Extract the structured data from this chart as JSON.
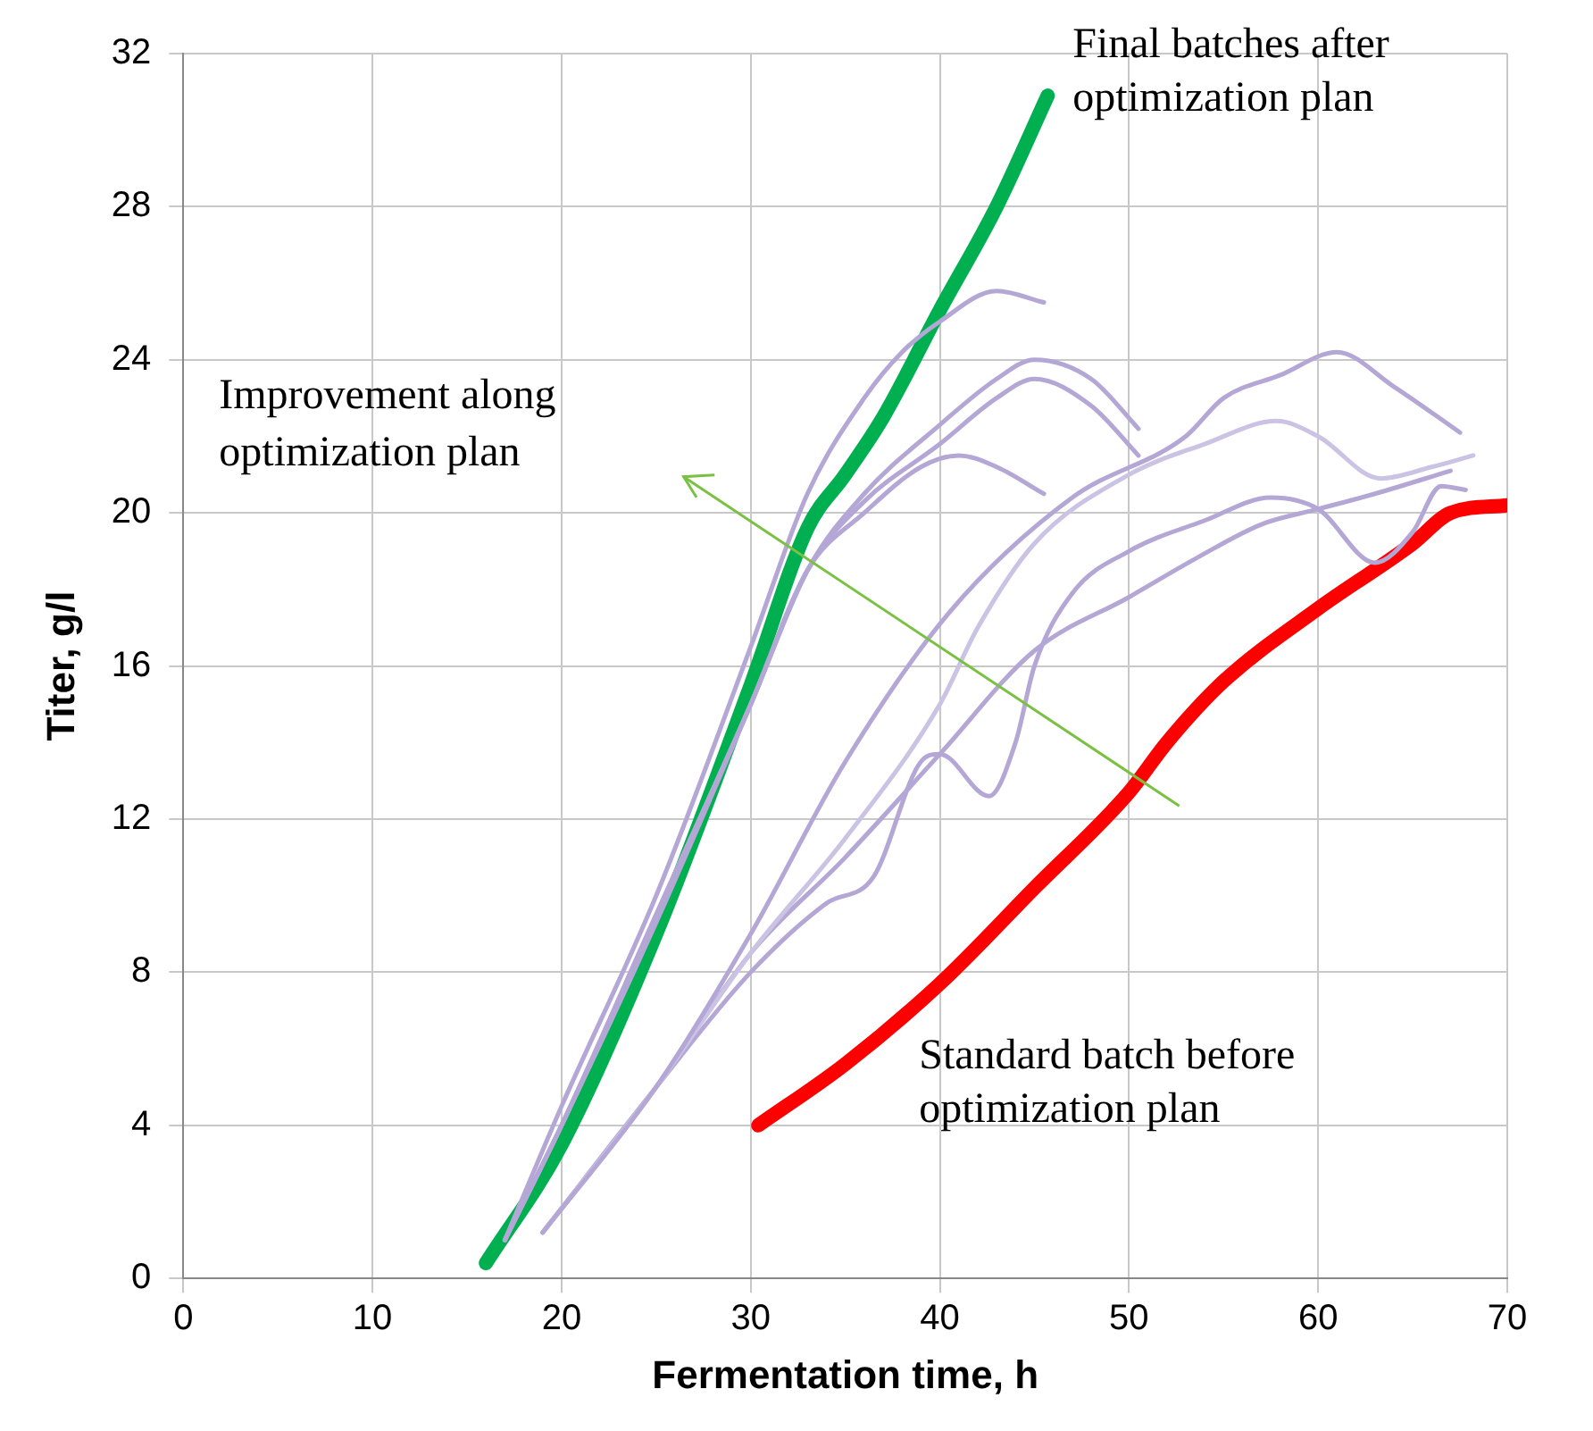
{
  "chart_data": {
    "type": "line",
    "xlabel": "Fermentation time, h",
    "ylabel": "Titer, g/l",
    "xlim": [
      0,
      70
    ],
    "xticks": [
      0,
      10,
      20,
      30,
      40,
      50,
      60,
      70
    ],
    "ylim": [
      0,
      32
    ],
    "yticks": [
      0,
      4,
      8,
      12,
      16,
      20,
      24,
      28,
      32
    ],
    "grid": true,
    "legend": false,
    "marker": "none",
    "line_style": "solid",
    "annotations": [
      "Improvement along optimization plan"
    ],
    "series": [
      {
        "color": "#b4a7d6",
        "x": [
          17,
          20,
          25,
          30,
          33,
          36,
          38,
          40,
          43,
          45.5
        ],
        "values": [
          1,
          4.5,
          10,
          16.5,
          20.5,
          23,
          24.2,
          25,
          25.8,
          25.5
        ]
      },
      {
        "color": "#b4a7d6",
        "x": [
          17,
          20,
          25,
          30,
          33,
          36,
          40,
          43,
          45,
          48,
          50.5
        ],
        "values": [
          1,
          4,
          9.5,
          15,
          18.5,
          20.5,
          22.3,
          23.5,
          24,
          23.5,
          22.2
        ]
      },
      {
        "color": "#b4a7d6",
        "x": [
          17,
          20,
          25,
          30,
          33,
          36,
          40,
          43,
          45,
          48,
          50.5
        ],
        "values": [
          1,
          4,
          9.5,
          15,
          18.5,
          20.3,
          21.8,
          23,
          23.5,
          22.8,
          21.5
        ]
      },
      {
        "color": "#b4a7d6",
        "x": [
          17,
          20,
          25,
          30,
          33,
          36,
          39,
          41,
          43,
          45.5
        ],
        "values": [
          1,
          4,
          9.3,
          15,
          18.5,
          20,
          21.2,
          21.5,
          21.2,
          20.5
        ]
      },
      {
        "color": "#b4a7d6",
        "x": [
          19,
          25,
          30,
          35,
          40.5,
          47,
          53,
          55,
          58,
          61,
          64,
          67.5
        ],
        "values": [
          1.2,
          5,
          9,
          13.5,
          17.4,
          20.4,
          22,
          23,
          23.6,
          24.2,
          23.3,
          22.1
        ]
      },
      {
        "color": "#cbc3e3",
        "x": [
          19,
          25,
          30,
          35,
          40,
          42,
          45,
          50,
          54,
          57.8,
          60,
          63.3,
          66,
          68.2
        ],
        "values": [
          1.2,
          5,
          8.5,
          11.5,
          15,
          17,
          19.2,
          21,
          21.8,
          22.4,
          22,
          20.9,
          21.2,
          21.5
        ]
      },
      {
        "color": "#b4a7d6",
        "x": [
          19,
          25,
          30,
          34,
          36.5,
          39,
          40,
          42.6,
          44,
          45,
          47,
          50,
          54,
          57.5,
          60,
          63,
          65,
          66.5,
          67.8
        ],
        "values": [
          1.2,
          5,
          8,
          9.8,
          10.5,
          13.5,
          13.7,
          12.6,
          14,
          16,
          17.9,
          19,
          19.8,
          20.4,
          20.1,
          18.7,
          19.5,
          20.7,
          20.6
        ]
      },
      {
        "color": "#b4a7d6",
        "x": [
          19,
          25,
          30,
          35,
          40,
          45,
          50,
          53.5,
          57,
          60,
          63,
          67
        ],
        "values": [
          1.2,
          5,
          8.5,
          11,
          13.7,
          16.4,
          17.8,
          18.8,
          19.7,
          20.1,
          20.5,
          21.1
        ]
      },
      {
        "name": "Final batches after optimization plan",
        "color": "#00b050",
        "x": [
          16,
          20,
          25,
          30,
          33,
          35,
          37,
          40,
          43,
          45.7
        ],
        "values": [
          0.4,
          3.5,
          9,
          15.5,
          19.6,
          21,
          22.5,
          25.3,
          28,
          30.9
        ]
      },
      {
        "name": "Standard batch before optimization plan",
        "color": "#ff0000",
        "x": [
          30.4,
          35,
          40,
          45,
          50,
          52,
          55,
          60,
          65,
          67,
          70
        ],
        "values": [
          4,
          5.6,
          7.7,
          10.2,
          12.7,
          14,
          15.6,
          17.5,
          19.2,
          20,
          20.2
        ]
      }
    ]
  }
}
